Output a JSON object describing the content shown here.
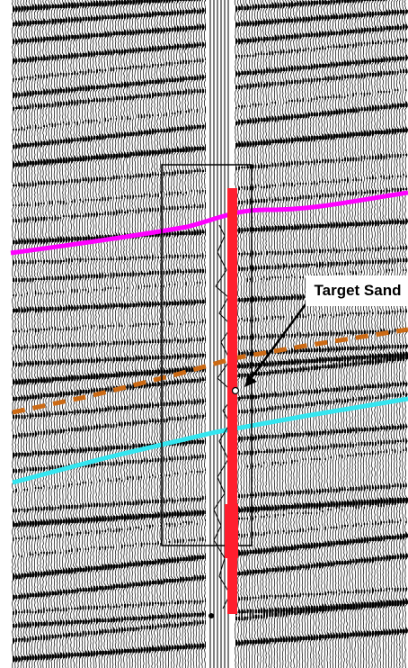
{
  "annotation": {
    "label": "Target Sand"
  },
  "colors": {
    "background": "#ffffff",
    "trace_ink": "#000000",
    "horizon_top": "#ff00ff",
    "horizon_middle": "#cc6a14",
    "horizon_bottom": "#33e6f0",
    "well_log": "#ff1e2e",
    "well_box_outline": "#000000"
  }
}
